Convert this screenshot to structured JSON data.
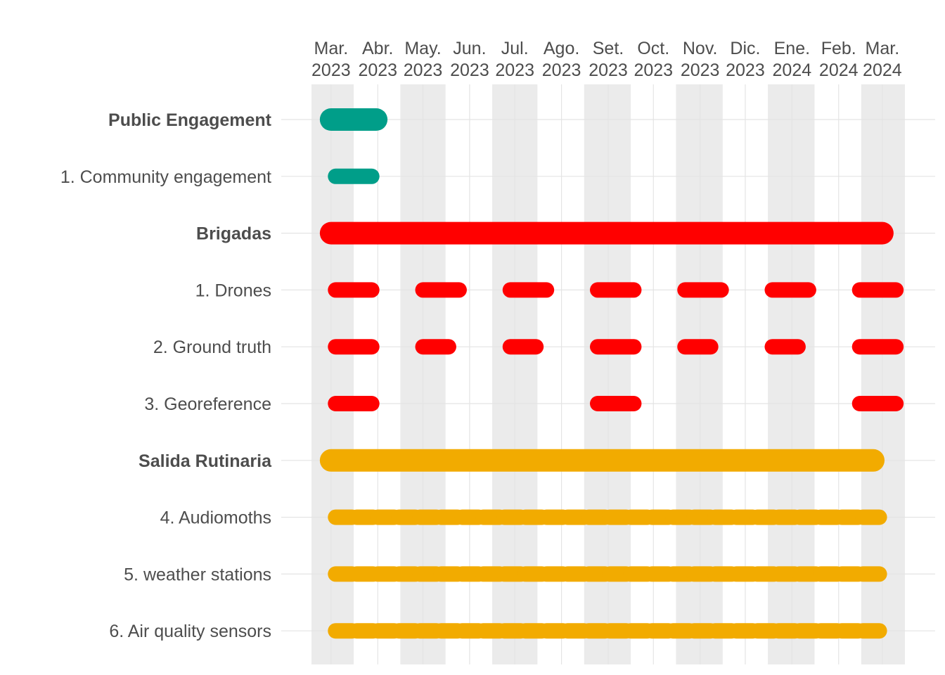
{
  "chart_data": {
    "type": "gantt",
    "x_axis": {
      "position": "top",
      "ticks": [
        {
          "month": "Mar.",
          "year": "2023"
        },
        {
          "month": "Abr.",
          "year": "2023"
        },
        {
          "month": "May.",
          "year": "2023"
        },
        {
          "month": "Jun.",
          "year": "2023"
        },
        {
          "month": "Jul.",
          "year": "2023"
        },
        {
          "month": "Ago.",
          "year": "2023"
        },
        {
          "month": "Set.",
          "year": "2023"
        },
        {
          "month": "Oct.",
          "year": "2023"
        },
        {
          "month": "Nov.",
          "year": "2023"
        },
        {
          "month": "Dic.",
          "year": "2023"
        },
        {
          "month": "Ene.",
          "year": "2024"
        },
        {
          "month": "Feb.",
          "year": "2024"
        },
        {
          "month": "Mar.",
          "year": "2024"
        }
      ],
      "range": [
        "2023-02-16",
        "2024-03-16"
      ]
    },
    "shaded_bands": [
      [
        "2023-02-16",
        "2023-03-16"
      ],
      [
        "2023-04-16",
        "2023-05-16"
      ],
      [
        "2023-06-16",
        "2023-07-16"
      ],
      [
        "2023-08-16",
        "2023-09-16"
      ],
      [
        "2023-10-16",
        "2023-11-16"
      ],
      [
        "2023-12-16",
        "2024-01-16"
      ],
      [
        "2024-02-16",
        "2024-03-16"
      ]
    ],
    "grid": true,
    "colors": {
      "Public Engagement": "#009E89",
      "Brigadas": "#FF0000",
      "Salida Rutinaria": "#F2AB00",
      "band": "#EBEBEB",
      "grid": "#E4E4E4"
    },
    "rows": [
      {
        "label": "Public Engagement",
        "group": "Public Engagement",
        "header": true,
        "segments": [
          [
            "2023-03-01",
            "2023-03-31"
          ]
        ]
      },
      {
        "label": "1. Community engagement",
        "group": "Public Engagement",
        "header": false,
        "segments": [
          [
            "2023-03-04",
            "2023-03-28"
          ]
        ]
      },
      {
        "label": "Brigadas",
        "group": "Brigadas",
        "header": true,
        "segments": [
          [
            "2023-03-01",
            "2024-03-01"
          ]
        ]
      },
      {
        "label": "1. Drones",
        "group": "Brigadas",
        "header": false,
        "segments": [
          [
            "2023-03-04",
            "2023-03-28"
          ],
          [
            "2023-05-01",
            "2023-05-25"
          ],
          [
            "2023-06-28",
            "2023-07-22"
          ],
          [
            "2023-08-25",
            "2023-09-18"
          ],
          [
            "2023-10-22",
            "2023-11-15"
          ],
          [
            "2023-12-19",
            "2024-01-12"
          ],
          [
            "2024-02-15",
            "2024-03-10"
          ]
        ]
      },
      {
        "label": "2. Ground truth",
        "group": "Brigadas",
        "header": false,
        "segments": [
          [
            "2023-03-04",
            "2023-03-28"
          ],
          [
            "2023-05-01",
            "2023-05-18"
          ],
          [
            "2023-06-28",
            "2023-07-15"
          ],
          [
            "2023-08-25",
            "2023-09-18"
          ],
          [
            "2023-10-22",
            "2023-11-08"
          ],
          [
            "2023-12-19",
            "2024-01-05"
          ],
          [
            "2024-02-15",
            "2024-03-10"
          ]
        ]
      },
      {
        "label": "3. Georeference",
        "group": "Brigadas",
        "header": false,
        "segments": [
          [
            "2023-03-04",
            "2023-03-28"
          ],
          [
            "2023-08-25",
            "2023-09-18"
          ],
          [
            "2024-02-15",
            "2024-03-10"
          ]
        ]
      },
      {
        "label": "Salida Rutinaria",
        "group": "Salida Rutinaria",
        "header": true,
        "segments": [
          [
            "2023-03-01",
            "2024-02-24"
          ]
        ]
      },
      {
        "label": "4. Audiomoths",
        "group": "Salida Rutinaria",
        "header": false,
        "repeat": {
          "start": "2023-03-04",
          "every_days": 14,
          "length_days": 11,
          "count": 26
        }
      },
      {
        "label": "5. weather stations",
        "group": "Salida Rutinaria",
        "header": false,
        "repeat": {
          "start": "2023-03-04",
          "every_days": 14,
          "length_days": 11,
          "count": 26
        }
      },
      {
        "label": "6. Air quality sensors",
        "group": "Salida Rutinaria",
        "header": false,
        "repeat": {
          "start": "2023-03-04",
          "every_days": 14,
          "length_days": 11,
          "count": 26
        }
      }
    ]
  }
}
